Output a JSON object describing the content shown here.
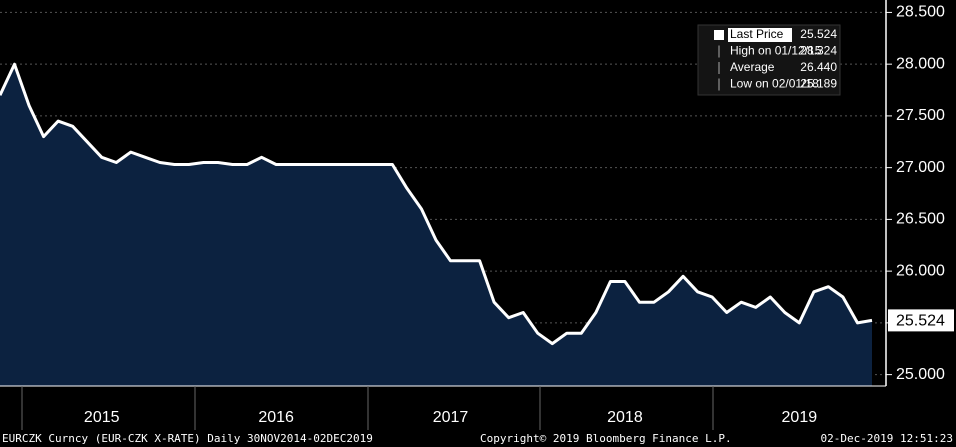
{
  "chart_data": {
    "type": "area",
    "categories": [
      null,
      null,
      null,
      null,
      null,
      null,
      null,
      "2015",
      null,
      null,
      null,
      null,
      null,
      null,
      null,
      null,
      null,
      null,
      null,
      "2016",
      null,
      null,
      null,
      null,
      null,
      null,
      null,
      null,
      null,
      null,
      null,
      "2017",
      null,
      null,
      null,
      null,
      null,
      null,
      null,
      null,
      null,
      null,
      null,
      "2018",
      null,
      null,
      null,
      null,
      null,
      null,
      null,
      null,
      null,
      null,
      null,
      "2019",
      null,
      null,
      null,
      null,
      null
    ],
    "series": [
      {
        "name": "Last Price",
        "color": "#ffffff",
        "fill": "#0c2240",
        "values": [
          27.7,
          28.0,
          27.6,
          27.3,
          27.45,
          27.4,
          27.25,
          27.1,
          27.05,
          27.15,
          27.1,
          27.05,
          27.03,
          27.03,
          27.05,
          27.05,
          27.03,
          27.03,
          27.1,
          27.03,
          27.03,
          27.03,
          27.03,
          27.03,
          27.03,
          27.03,
          27.03,
          27.03,
          26.8,
          26.6,
          26.3,
          26.1,
          26.1,
          26.1,
          25.7,
          25.55,
          25.6,
          25.4,
          25.3,
          25.4,
          25.4,
          25.6,
          25.9,
          25.9,
          25.7,
          25.7,
          25.8,
          25.95,
          25.8,
          25.75,
          25.6,
          25.7,
          25.65,
          25.75,
          25.6,
          25.5,
          25.8,
          25.85,
          25.75,
          25.5,
          25.524
        ]
      }
    ],
    "ylim": [
      24.89,
      28.62
    ],
    "yticks": [
      {
        "value": 25,
        "label": "25.000"
      },
      {
        "value": 25.5,
        "label": "25.500"
      },
      {
        "value": 26,
        "label": "26.000"
      },
      {
        "value": 26.5,
        "label": "26.500"
      },
      {
        "value": 27,
        "label": "27.000"
      },
      {
        "value": 27.5,
        "label": "27.500"
      },
      {
        "value": 28,
        "label": "28.000"
      },
      {
        "value": 28.5,
        "label": "28.500"
      }
    ],
    "grid": true,
    "legend": [
      {
        "label": "Last Price",
        "value": "25.524"
      },
      {
        "label": "High on 01/12/15",
        "value": "28.324"
      },
      {
        "label": "Average",
        "value": "26.440"
      },
      {
        "label": "Low on 02/01/18",
        "value": "25.189"
      }
    ],
    "footer": {
      "left": "EURCZK Curncy (EUR-CZK X-RATE)  Daily 30NOV2014-02DEC2019",
      "center": "Copyright© 2019 Bloomberg Finance L.P.",
      "right": "02-Dec-2019 12:51:23"
    }
  }
}
